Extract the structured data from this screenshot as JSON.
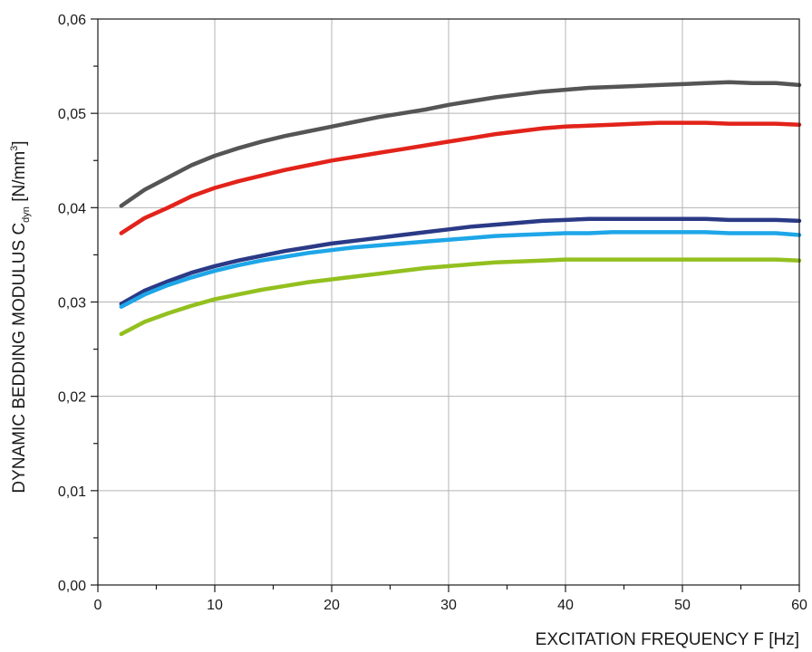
{
  "chart_data": {
    "type": "line",
    "xlabel": "EXCITATION FREQUENCY F [Hz]",
    "ylabel": {
      "main": "DYNAMIC BEDDING MODULUS C",
      "subscript": "dyn",
      "unit_open": " [N/mm",
      "unit_sup": "3",
      "unit_close": "]"
    },
    "xlim": [
      0,
      60
    ],
    "ylim": [
      0,
      0.06
    ],
    "xticks": [
      0,
      10,
      20,
      30,
      40,
      50,
      60
    ],
    "xtick_labels": [
      "0",
      "10",
      "20",
      "30",
      "40",
      "50",
      "60"
    ],
    "yticks": [
      0,
      0.01,
      0.02,
      0.03,
      0.04,
      0.05,
      0.06
    ],
    "ytick_labels": [
      "0,00",
      "0,01",
      "0,02",
      "0,03",
      "0,04",
      "0,05",
      "0,06"
    ],
    "grid": true,
    "x": [
      2,
      4,
      6,
      8,
      10,
      12,
      14,
      16,
      18,
      20,
      22,
      24,
      26,
      28,
      30,
      32,
      34,
      36,
      38,
      40,
      42,
      44,
      46,
      48,
      50,
      52,
      54,
      56,
      58,
      60
    ],
    "series": [
      {
        "color": "#555555",
        "values": [
          0.0402,
          0.0419,
          0.0432,
          0.0445,
          0.0455,
          0.0463,
          0.047,
          0.0476,
          0.0481,
          0.0486,
          0.0491,
          0.0496,
          0.05,
          0.0504,
          0.0509,
          0.0513,
          0.0517,
          0.052,
          0.0523,
          0.0525,
          0.0527,
          0.0528,
          0.0529,
          0.053,
          0.0531,
          0.0532,
          0.0533,
          0.0532,
          0.0532,
          0.053
        ]
      },
      {
        "color": "#e2231a",
        "values": [
          0.0373,
          0.0389,
          0.04,
          0.0412,
          0.0421,
          0.0428,
          0.0434,
          0.044,
          0.0445,
          0.045,
          0.0454,
          0.0458,
          0.0462,
          0.0466,
          0.047,
          0.0474,
          0.0478,
          0.0481,
          0.0484,
          0.0486,
          0.0487,
          0.0488,
          0.0489,
          0.049,
          0.049,
          0.049,
          0.0489,
          0.0489,
          0.0489,
          0.0488
        ]
      },
      {
        "color": "#2b3a86",
        "values": [
          0.0298,
          0.0312,
          0.0322,
          0.0331,
          0.0338,
          0.0344,
          0.0349,
          0.0354,
          0.0358,
          0.0362,
          0.0365,
          0.0368,
          0.0371,
          0.0374,
          0.0377,
          0.038,
          0.0382,
          0.0384,
          0.0386,
          0.0387,
          0.0388,
          0.0388,
          0.0388,
          0.0388,
          0.0388,
          0.0388,
          0.0387,
          0.0387,
          0.0387,
          0.0386
        ]
      },
      {
        "color": "#1ea6e8",
        "values": [
          0.0295,
          0.0308,
          0.0318,
          0.0326,
          0.0333,
          0.0339,
          0.0344,
          0.0348,
          0.0352,
          0.0355,
          0.0358,
          0.036,
          0.0362,
          0.0364,
          0.0366,
          0.0368,
          0.037,
          0.0371,
          0.0372,
          0.0373,
          0.0373,
          0.0374,
          0.0374,
          0.0374,
          0.0374,
          0.0374,
          0.0373,
          0.0373,
          0.0373,
          0.0371
        ]
      },
      {
        "color": "#93c01f",
        "values": [
          0.0266,
          0.0279,
          0.0288,
          0.0296,
          0.0303,
          0.0308,
          0.0313,
          0.0317,
          0.0321,
          0.0324,
          0.0327,
          0.033,
          0.0333,
          0.0336,
          0.0338,
          0.034,
          0.0342,
          0.0343,
          0.0344,
          0.0345,
          0.0345,
          0.0345,
          0.0345,
          0.0345,
          0.0345,
          0.0345,
          0.0345,
          0.0345,
          0.0345,
          0.0344
        ]
      }
    ]
  }
}
